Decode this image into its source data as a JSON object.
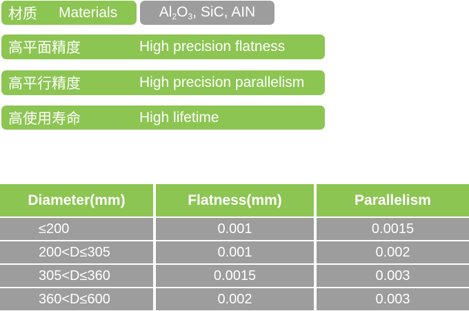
{
  "features": {
    "material": {
      "cn": "材质",
      "en": "Materials",
      "value_parts": [
        "Al",
        "2",
        "O",
        "3",
        ", SiC, AIN"
      ]
    },
    "items": [
      {
        "cn": "高平面精度",
        "en": "High precision flatness"
      },
      {
        "cn": "高平行精度",
        "en": "High precision parallelism"
      },
      {
        "cn": "高使用寿命",
        "en": "High lifetime"
      }
    ]
  },
  "table": {
    "headers": [
      "Diameter(mm)",
      "Flatness(mm)",
      "Parallelism"
    ],
    "rows": [
      [
        "≤200",
        "0.001",
        "0.0015"
      ],
      [
        "200<D≤305",
        "0.001",
        "0.002"
      ],
      [
        "305<D≤360",
        "0.0015",
        "0.003"
      ],
      [
        "360<D≤600",
        "0.002",
        "0.003"
      ]
    ]
  },
  "colors": {
    "green": "#8cc552",
    "gray": "#9d9d9e"
  }
}
